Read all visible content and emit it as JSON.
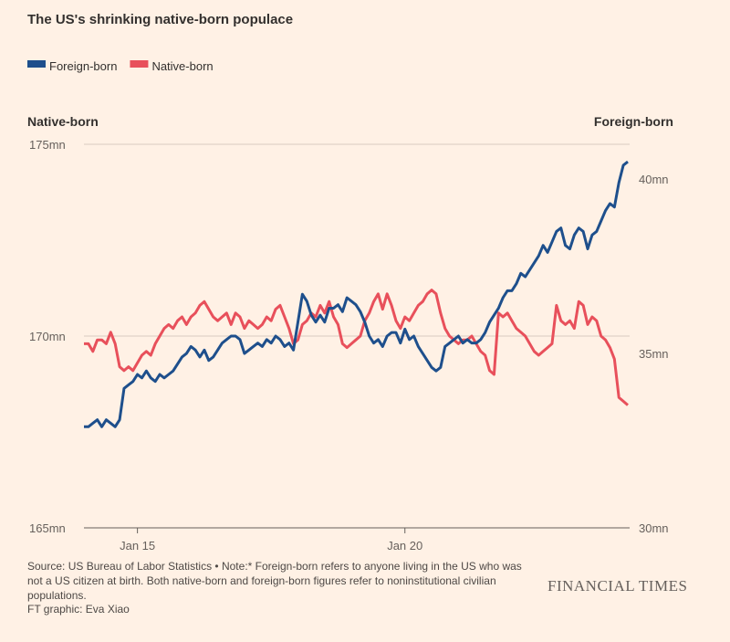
{
  "chart_data": {
    "type": "line",
    "title": "The US's shrinking native-born populace",
    "y_label": "Native-born",
    "y2_label": "Foreign-born",
    "source": "Source: US Bureau of Labor Statistics • Note:* Foreign-born refers to anyone living in the US who was not a US citizen at birth. Both native-born and foreign-born figures refer to noninstitutional civilian populations.",
    "credit": "FT graphic: Eva Xiao",
    "brand": "FINANCIAL TIMES",
    "legend": "top-left",
    "grid": true,
    "ylim": [
      165,
      175
    ],
    "yticks": [
      {
        "value": 165,
        "label": "165mn"
      },
      {
        "value": 170,
        "label": "170mn"
      },
      {
        "value": 175,
        "label": "175mn"
      }
    ],
    "y2lim": [
      30,
      41
    ],
    "y2ticks": [
      {
        "value": 30,
        "label": "30mn"
      },
      {
        "value": 35,
        "label": "35mn"
      },
      {
        "value": 40,
        "label": "40mn"
      }
    ],
    "xticks": [
      {
        "value": "2015-01",
        "label": "Jan 15"
      },
      {
        "value": "2020-01",
        "label": "Jan 20"
      }
    ],
    "x": [
      "2014-01",
      "2014-02",
      "2014-03",
      "2014-04",
      "2014-05",
      "2014-06",
      "2014-07",
      "2014-08",
      "2014-09",
      "2014-10",
      "2014-11",
      "2014-12",
      "2015-01",
      "2015-02",
      "2015-03",
      "2015-04",
      "2015-05",
      "2015-06",
      "2015-07",
      "2015-08",
      "2015-09",
      "2015-10",
      "2015-11",
      "2015-12",
      "2016-01",
      "2016-02",
      "2016-03",
      "2016-04",
      "2016-05",
      "2016-06",
      "2016-07",
      "2016-08",
      "2016-09",
      "2016-10",
      "2016-11",
      "2016-12",
      "2017-01",
      "2017-02",
      "2017-03",
      "2017-04",
      "2017-05",
      "2017-06",
      "2017-07",
      "2017-08",
      "2017-09",
      "2017-10",
      "2017-11",
      "2017-12",
      "2018-01",
      "2018-02",
      "2018-03",
      "2018-04",
      "2018-05",
      "2018-06",
      "2018-07",
      "2018-08",
      "2018-09",
      "2018-10",
      "2018-11",
      "2018-12",
      "2019-01",
      "2019-02",
      "2019-03",
      "2019-04",
      "2019-05",
      "2019-06",
      "2019-07",
      "2019-08",
      "2019-09",
      "2019-10",
      "2019-11",
      "2019-12",
      "2020-01",
      "2020-02",
      "2020-03",
      "2020-04",
      "2020-05",
      "2020-06",
      "2020-07",
      "2020-08",
      "2020-09",
      "2020-10",
      "2020-11",
      "2020-12",
      "2021-01",
      "2021-02",
      "2021-03",
      "2021-04",
      "2021-05",
      "2021-06",
      "2021-07",
      "2021-08",
      "2021-09",
      "2021-10",
      "2021-11",
      "2021-12",
      "2022-01",
      "2022-02",
      "2022-03",
      "2022-04",
      "2022-05",
      "2022-06",
      "2022-07",
      "2022-08",
      "2022-09",
      "2022-10",
      "2022-11",
      "2022-12",
      "2023-01",
      "2023-02",
      "2023-03",
      "2023-04",
      "2023-05",
      "2023-06",
      "2023-07",
      "2023-08",
      "2023-09",
      "2023-10",
      "2023-11",
      "2023-12",
      "2024-01",
      "2024-02",
      "2024-03"
    ],
    "series": [
      {
        "name": "Foreign-born",
        "color": "#1e4f8c",
        "axis": "y2",
        "values": [
          32.9,
          32.9,
          33.0,
          33.1,
          32.9,
          33.1,
          33.0,
          32.9,
          33.1,
          34.0,
          34.1,
          34.2,
          34.4,
          34.3,
          34.5,
          34.3,
          34.2,
          34.4,
          34.3,
          34.4,
          34.5,
          34.7,
          34.9,
          35.0,
          35.2,
          35.1,
          34.9,
          35.1,
          34.8,
          34.9,
          35.1,
          35.3,
          35.4,
          35.5,
          35.5,
          35.4,
          35.0,
          35.1,
          35.2,
          35.3,
          35.2,
          35.4,
          35.3,
          35.5,
          35.4,
          35.2,
          35.3,
          35.1,
          35.9,
          36.7,
          36.5,
          36.1,
          35.9,
          36.1,
          35.9,
          36.3,
          36.3,
          36.4,
          36.2,
          36.6,
          36.5,
          36.4,
          36.2,
          35.9,
          35.5,
          35.3,
          35.4,
          35.2,
          35.5,
          35.6,
          35.6,
          35.3,
          35.7,
          35.4,
          35.5,
          35.2,
          35.0,
          34.8,
          34.6,
          34.5,
          34.6,
          35.2,
          35.3,
          35.4,
          35.5,
          35.3,
          35.4,
          35.3,
          35.3,
          35.4,
          35.6,
          35.9,
          36.1,
          36.3,
          36.6,
          36.8,
          36.8,
          37.0,
          37.3,
          37.2,
          37.4,
          37.6,
          37.8,
          38.1,
          37.9,
          38.2,
          38.5,
          38.6,
          38.1,
          38.0,
          38.4,
          38.6,
          38.5,
          38.0,
          38.4,
          38.5,
          38.8,
          39.1,
          39.3,
          39.2,
          39.9,
          40.4,
          40.5
        ]
      },
      {
        "name": "Native-born",
        "color": "#e8505b",
        "values": [
          169.8,
          169.8,
          169.6,
          169.9,
          169.9,
          169.8,
          170.1,
          169.8,
          169.2,
          169.1,
          169.2,
          169.1,
          169.3,
          169.5,
          169.6,
          169.5,
          169.8,
          170.0,
          170.2,
          170.3,
          170.2,
          170.4,
          170.5,
          170.3,
          170.5,
          170.6,
          170.8,
          170.9,
          170.7,
          170.5,
          170.4,
          170.5,
          170.6,
          170.3,
          170.6,
          170.5,
          170.2,
          170.4,
          170.3,
          170.2,
          170.3,
          170.5,
          170.4,
          170.7,
          170.8,
          170.5,
          170.2,
          169.8,
          169.9,
          170.3,
          170.4,
          170.6,
          170.5,
          170.8,
          170.6,
          170.9,
          170.5,
          170.3,
          169.8,
          169.7,
          169.8,
          169.9,
          170.0,
          170.4,
          170.6,
          170.9,
          171.1,
          170.7,
          171.1,
          170.8,
          170.4,
          170.2,
          170.5,
          170.4,
          170.6,
          170.8,
          170.9,
          171.1,
          171.2,
          171.1,
          170.6,
          170.2,
          170.0,
          169.9,
          169.8,
          169.9,
          169.9,
          170.0,
          169.8,
          169.6,
          169.5,
          169.1,
          169.0,
          170.6,
          170.5,
          170.6,
          170.4,
          170.2,
          170.1,
          170.0,
          169.8,
          169.6,
          169.5,
          169.6,
          169.7,
          169.8,
          170.8,
          170.4,
          170.3,
          170.4,
          170.2,
          170.9,
          170.8,
          170.3,
          170.5,
          170.4,
          170.0,
          169.9,
          169.7,
          169.4,
          168.4,
          168.3,
          168.2
        ]
      }
    ]
  }
}
